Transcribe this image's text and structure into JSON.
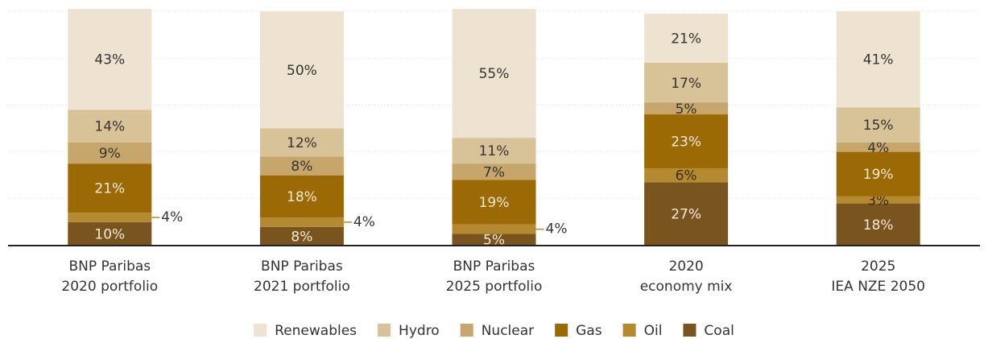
{
  "chart_data": {
    "type": "stacked_bar",
    "categories": [
      [
        "BNP Paribas",
        "2020 portfolio"
      ],
      [
        "BNP Paribas",
        "2021 portfolio"
      ],
      [
        "BNP Paribas",
        "2025 portfolio"
      ],
      [
        "2020",
        "economy mix"
      ],
      [
        "2025",
        "IEA NZE 2050"
      ]
    ],
    "series": [
      {
        "name": "Coal",
        "color": "#7a541e",
        "label_color": "#f3ead8",
        "values": [
          10,
          8,
          5,
          27,
          18
        ],
        "value_labels": [
          "10%",
          "8%",
          "5%",
          "27%",
          "18%"
        ]
      },
      {
        "name": "Oil",
        "color": "#b48a30",
        "label_color": "#3a2a10",
        "values": [
          4,
          4,
          4,
          6,
          3
        ],
        "value_labels": [
          "4%",
          "4%",
          "4%",
          "6%",
          "3%"
        ],
        "label_outside": [
          true,
          true,
          true,
          false,
          false
        ]
      },
      {
        "name": "Gas",
        "color": "#9c6a04",
        "label_color": "#f3ead8",
        "values": [
          21,
          18,
          19,
          23,
          19
        ],
        "value_labels": [
          "21%",
          "18%",
          "19%",
          "23%",
          "19%"
        ]
      },
      {
        "name": "Nuclear",
        "color": "#c6a66a",
        "label_color": "#333333",
        "values": [
          9,
          8,
          7,
          5,
          4
        ],
        "value_labels": [
          "9%",
          "8%",
          "7%",
          "5%",
          "4%"
        ]
      },
      {
        "name": "Hydro",
        "color": "#d8c398",
        "label_color": "#333333",
        "values": [
          14,
          12,
          11,
          17,
          15
        ],
        "value_labels": [
          "14%",
          "12%",
          "11%",
          "17%",
          "15%"
        ]
      },
      {
        "name": "Renewables",
        "color": "#ede3d0",
        "label_color": "#333333",
        "values": [
          43,
          50,
          55,
          21,
          41
        ],
        "value_labels": [
          "43%",
          "50%",
          "55%",
          "21%",
          "41%"
        ]
      }
    ],
    "ylim": [
      0,
      100
    ],
    "yticks": [
      0,
      20,
      40,
      60,
      80,
      100
    ],
    "grid": true,
    "legend": "bottom"
  }
}
